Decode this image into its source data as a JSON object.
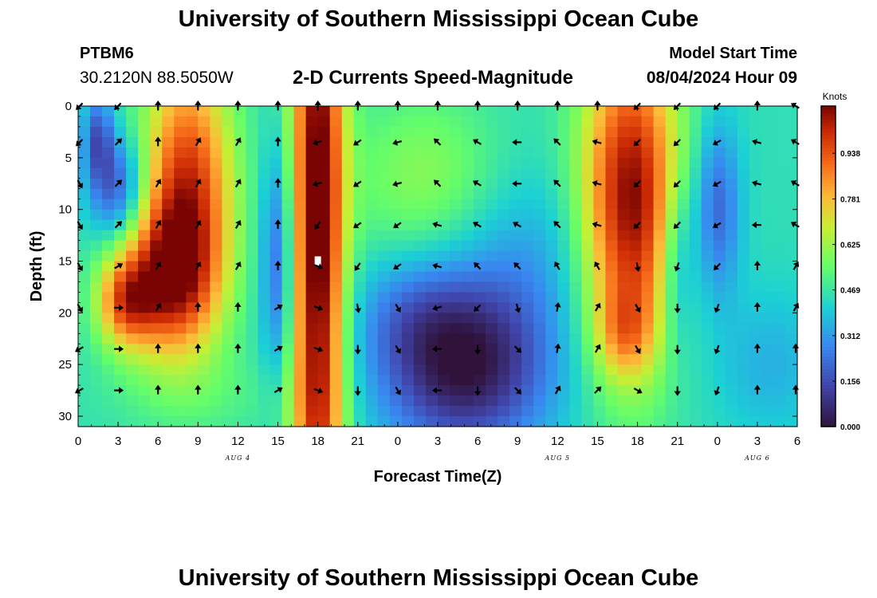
{
  "header": {
    "title_top": "University of Southern Mississippi Ocean Cube",
    "title_bottom": "University of Southern Mississippi Ocean Cube",
    "station": "PTBM6",
    "coords": "30.2120N  88.5050W",
    "plot_title": "2-D Currents Speed-Magnitude",
    "model_label": "Model Start Time",
    "model_time": "08/04/2024 Hour 09"
  },
  "chart_data": {
    "type": "heatmap",
    "title": "2-D Currents Speed-Magnitude",
    "xlabel": "Forecast Time(Z)",
    "ylabel": "Depth (ft)",
    "x_range": [
      0,
      54
    ],
    "y_range": [
      0,
      31
    ],
    "y_inverted": true,
    "x_ticks": [
      0,
      3,
      6,
      9,
      12,
      15,
      18,
      21,
      24,
      27,
      30,
      33,
      36,
      39,
      42,
      45,
      48,
      51,
      54
    ],
    "x_tick_labels": [
      "0",
      "3",
      "6",
      "9",
      "12",
      "15",
      "18",
      "21",
      "0",
      "3",
      "6",
      "9",
      "12",
      "15",
      "18",
      "21",
      "0",
      "3",
      "6"
    ],
    "y_ticks": [
      0,
      5,
      10,
      15,
      20,
      25,
      30
    ],
    "y_tick_labels": [
      "0",
      "5",
      "10",
      "15",
      "20",
      "25",
      "30"
    ],
    "day_labels": [
      {
        "label": "AUG 4",
        "x": 12
      },
      {
        "label": "AUG 5",
        "x": 36
      },
      {
        "label": "AUG 6",
        "x": 51
      }
    ],
    "colorbar": {
      "unit": "Knots",
      "min": 0.0,
      "max": 1.1,
      "ticks": [
        0.0,
        0.156,
        0.312,
        0.469,
        0.625,
        0.781,
        0.938
      ],
      "tick_labels": [
        "0.000",
        "0.156",
        "0.312",
        "0.469",
        "0.625",
        "0.781",
        "0.938"
      ]
    },
    "field_features": [
      {
        "desc": "high speed column",
        "x": 8.0,
        "y_from": 0,
        "y_to": 24,
        "speed": 1.0
      },
      {
        "desc": "high speed column",
        "x": 18.0,
        "y_from": 0,
        "y_to": 31,
        "speed": 1.1
      },
      {
        "desc": "high speed column",
        "x": 41.5,
        "y_from": 0,
        "y_to": 23,
        "speed": 1.05
      },
      {
        "desc": "low speed pocket",
        "x": 29.0,
        "y": 27,
        "speed": 0.0
      },
      {
        "desc": "low speed band",
        "x": 15.0,
        "y": 15,
        "speed": 0.1
      },
      {
        "desc": "low speed band",
        "x": 48.0,
        "y": 10,
        "speed": 0.15
      }
    ],
    "arrow_times": [
      0,
      3,
      6,
      9,
      12,
      15,
      18,
      21,
      24,
      27,
      30,
      33,
      36,
      39,
      42,
      45,
      48,
      51,
      54
    ],
    "arrow_depths": [
      0,
      3.5,
      7.5,
      11.5,
      15.5,
      19.5,
      23.5,
      27.5
    ],
    "arrow_directions_deg": [
      [
        225,
        225,
        150,
        150,
        150,
        150,
        240,
        240
      ],
      [
        225,
        45,
        45,
        45,
        60,
        90,
        90,
        90
      ],
      [
        0,
        0,
        30,
        30,
        30,
        30,
        0,
        0
      ],
      [
        0,
        30,
        30,
        30,
        30,
        0,
        0,
        0
      ],
      [
        0,
        30,
        30,
        30,
        30,
        0,
        0,
        0
      ],
      [
        0,
        0,
        0,
        0,
        0,
        60,
        60,
        60
      ],
      [
        0,
        255,
        255,
        215,
        110,
        110,
        110,
        110
      ],
      [
        0,
        235,
        235,
        235,
        215,
        170,
        180,
        180
      ],
      [
        0,
        255,
        255,
        235,
        235,
        150,
        150,
        150
      ],
      [
        0,
        315,
        315,
        285,
        285,
        255,
        270,
        270
      ],
      [
        0,
        300,
        300,
        300,
        315,
        225,
        180,
        180
      ],
      [
        0,
        270,
        270,
        300,
        315,
        165,
        135,
        135
      ],
      [
        0,
        315,
        315,
        315,
        330,
        10,
        10,
        30
      ],
      [
        0,
        285,
        285,
        285,
        330,
        30,
        30,
        45
      ],
      [
        225,
        225,
        225,
        225,
        170,
        150,
        150,
        120
      ],
      [
        225,
        225,
        225,
        225,
        200,
        180,
        180,
        180
      ],
      [
        225,
        240,
        240,
        240,
        225,
        200,
        200,
        200
      ],
      [
        0,
        285,
        285,
        270,
        0,
        0,
        0,
        0
      ],
      [
        300,
        300,
        300,
        300,
        30,
        30,
        0,
        0
      ]
    ],
    "grid": false,
    "marker": {
      "x": 18,
      "y": 15
    }
  }
}
